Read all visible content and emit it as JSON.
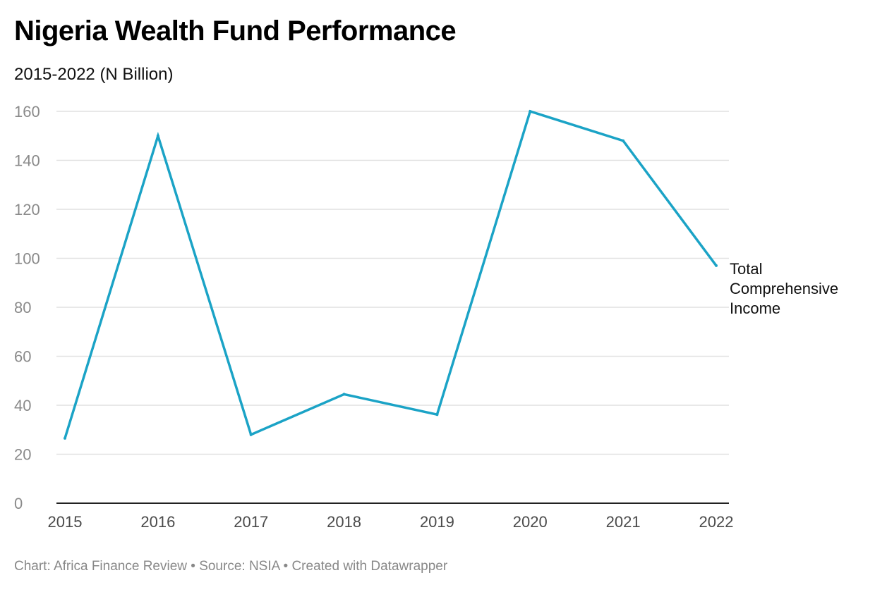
{
  "header": {
    "title": "Nigeria Wealth Fund Performance",
    "subtitle": "2015-2022 (N Billion)"
  },
  "footer": {
    "text": "Chart: Africa Finance Review • Source: NSIA • Created with Datawrapper"
  },
  "chart_data": {
    "type": "line",
    "title": "Nigeria Wealth Fund Performance",
    "subtitle": "2015-2022 (N Billion)",
    "xlabel": "",
    "ylabel": "",
    "categories": [
      "2015",
      "2016",
      "2017",
      "2018",
      "2019",
      "2020",
      "2021",
      "2022"
    ],
    "series": [
      {
        "name_lines": [
          "Total",
          "Comprehensive",
          "Income"
        ],
        "color": "#1ba3c6",
        "values": [
          26.5,
          150,
          28,
          44.5,
          36.2,
          160,
          148,
          97
        ]
      }
    ],
    "ylim": [
      0,
      160
    ],
    "yticks": [
      "0",
      "20",
      "40",
      "60",
      "80",
      "100",
      "120",
      "140",
      "160"
    ],
    "grid": true,
    "legend": "direct-label-right"
  }
}
